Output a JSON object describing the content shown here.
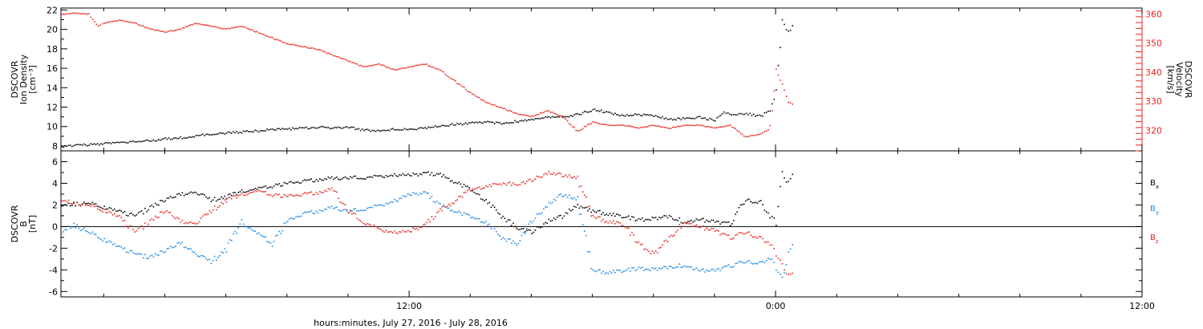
{
  "colors": {
    "black": "#000000",
    "red": "#e8251f",
    "blue": "#1e88e5",
    "axis": "#000000"
  },
  "chart_data": {
    "type": "scatter",
    "xlabel": "hours:minutes, July 27, 2016 - July 28, 2016",
    "x_unit": "hours from 00:00 July 27, 2016",
    "xlim": [
      0.6,
      36.0
    ],
    "x_ticks": [
      {
        "value": 12,
        "label": "12:00"
      },
      {
        "value": 24,
        "label": "0:00"
      },
      {
        "value": 36,
        "label": "12:00"
      }
    ],
    "top_panel": {
      "left_axis": {
        "label_lines": [
          "DSCOVR",
          "Ion Density",
          "[cm⁻³]"
        ],
        "ylim": [
          7.5,
          22.2
        ],
        "ticks": [
          8,
          10,
          12,
          14,
          16,
          18,
          20,
          22
        ],
        "color": "#000000"
      },
      "right_axis": {
        "label_lines": [
          "DSCOVR",
          "Velocity",
          "[km/s]"
        ],
        "ylim": [
          313,
          362
        ],
        "ticks": [
          320,
          330,
          340,
          350,
          360
        ],
        "color": "#e8251f"
      },
      "series": [
        {
          "color": "#000000",
          "axis": "left",
          "x": [
            0.6,
            1.0,
            1.5,
            2.0,
            2.5,
            3.0,
            3.5,
            4.0,
            4.5,
            5.0,
            5.5,
            6.0,
            6.5,
            7.0,
            7.5,
            8.0,
            8.5,
            9.0,
            9.5,
            10.0,
            10.5,
            11.0,
            11.5,
            12.0,
            12.5,
            13.0,
            13.5,
            14.0,
            14.5,
            15.0,
            15.5,
            16.0,
            16.5,
            17.0,
            17.5,
            18.0,
            18.5,
            19.0,
            19.5,
            20.0,
            20.5,
            21.0,
            21.5,
            22.0,
            22.3,
            22.6,
            22.9,
            23.2,
            23.5,
            23.8,
            24.0,
            24.2,
            24.4,
            24.6
          ],
          "y": [
            8.0,
            8.1,
            8.2,
            8.3,
            8.4,
            8.5,
            8.6,
            8.8,
            8.9,
            9.1,
            9.3,
            9.4,
            9.5,
            9.6,
            9.8,
            9.8,
            9.9,
            10.0,
            9.9,
            10.0,
            9.7,
            9.6,
            9.8,
            9.8,
            9.9,
            10.1,
            10.3,
            10.4,
            10.5,
            10.4,
            10.6,
            10.8,
            11.0,
            11.1,
            11.3,
            11.8,
            11.5,
            11.2,
            11.3,
            11.2,
            10.8,
            10.9,
            11.0,
            10.7,
            11.5,
            11.2,
            11.4,
            11.3,
            11.1,
            11.8,
            13.5,
            21.0,
            19.8,
            20.6
          ]
        },
        {
          "color": "#e8251f",
          "axis": "right",
          "x": [
            0.6,
            1.0,
            1.5,
            1.8,
            2.0,
            2.5,
            3.0,
            3.5,
            4.0,
            4.5,
            5.0,
            5.5,
            6.0,
            6.5,
            7.0,
            7.5,
            8.0,
            8.5,
            9.0,
            9.5,
            10.0,
            10.5,
            11.0,
            11.5,
            12.0,
            12.5,
            13.0,
            13.5,
            14.0,
            14.5,
            15.0,
            15.5,
            16.0,
            16.5,
            17.0,
            17.5,
            18.0,
            18.5,
            19.0,
            19.5,
            20.0,
            20.5,
            21.0,
            21.5,
            22.0,
            22.5,
            23.0,
            23.5,
            23.8,
            24.0,
            24.2,
            24.4,
            24.6
          ],
          "y": [
            360,
            360.5,
            360,
            356,
            357,
            358,
            357,
            355,
            354,
            355,
            357,
            356,
            355,
            356,
            354,
            352,
            350,
            349,
            348,
            346,
            344,
            342,
            343,
            341,
            342,
            343,
            341,
            337,
            333,
            330,
            328,
            326,
            325,
            327,
            325,
            320,
            323,
            322,
            322,
            321,
            322,
            321,
            322,
            322,
            321,
            322,
            318,
            319,
            321,
            341,
            336,
            330,
            329
          ]
        }
      ]
    },
    "bottom_panel": {
      "left_axis": {
        "label_lines": [
          "DSCOVR",
          "B",
          "[nT]"
        ],
        "ylim": [
          -6.5,
          7.0
        ],
        "ticks": [
          -6,
          -4,
          -2,
          0,
          2,
          4,
          6
        ],
        "color": "#000000"
      },
      "zero_line": true,
      "legend_placement": "right",
      "series": [
        {
          "name": "Bx",
          "color": "#000000",
          "x": [
            0.6,
            1.0,
            1.5,
            2.0,
            2.5,
            3.0,
            3.5,
            4.0,
            4.5,
            5.0,
            5.5,
            6.0,
            6.5,
            7.0,
            7.5,
            8.0,
            8.5,
            9.0,
            9.5,
            10.0,
            10.5,
            11.0,
            11.5,
            12.0,
            12.5,
            13.0,
            13.5,
            14.0,
            14.5,
            15.0,
            15.5,
            16.0,
            16.5,
            17.0,
            17.5,
            18.0,
            18.5,
            19.0,
            19.5,
            20.0,
            20.5,
            21.0,
            21.5,
            22.0,
            22.5,
            23.0,
            23.5,
            23.8,
            24.0,
            24.2,
            24.4,
            24.6
          ],
          "y": [
            2.0,
            2.1,
            2.2,
            1.8,
            1.5,
            1.0,
            1.8,
            2.5,
            3.0,
            3.2,
            2.5,
            2.8,
            3.3,
            3.6,
            3.8,
            4.0,
            4.2,
            4.4,
            4.5,
            4.6,
            4.6,
            4.7,
            4.8,
            4.8,
            5.0,
            4.8,
            4.2,
            3.5,
            2.5,
            1.0,
            0.0,
            -0.5,
            0.5,
            1.0,
            2.0,
            1.5,
            1.2,
            1.0,
            0.7,
            0.8,
            1.0,
            0.5,
            0.7,
            0.5,
            0.3,
            2.5,
            2.3,
            1.0,
            0.5,
            5.0,
            4.0,
            5.5
          ]
        },
        {
          "name": "By",
          "color": "#1e88e5",
          "x": [
            0.6,
            1.0,
            1.5,
            2.0,
            2.5,
            3.0,
            3.5,
            4.0,
            4.5,
            5.0,
            5.5,
            6.0,
            6.5,
            7.0,
            7.5,
            8.0,
            8.5,
            9.0,
            9.5,
            10.0,
            10.5,
            11.0,
            11.5,
            12.0,
            12.5,
            13.0,
            13.5,
            14.0,
            14.5,
            15.0,
            15.5,
            16.0,
            16.5,
            17.0,
            17.5,
            18.0,
            18.5,
            19.0,
            19.5,
            20.0,
            20.5,
            21.0,
            21.5,
            22.0,
            22.5,
            23.0,
            23.5,
            23.8,
            24.0,
            24.2,
            24.4,
            24.6
          ],
          "y": [
            -0.5,
            0.2,
            -0.5,
            -1.2,
            -1.8,
            -2.5,
            -2.8,
            -2.2,
            -1.5,
            -2.5,
            -3.2,
            -2.0,
            0.5,
            -0.5,
            -1.5,
            0.5,
            1.2,
            1.5,
            1.8,
            1.5,
            1.7,
            2.0,
            2.4,
            3.0,
            3.2,
            2.0,
            1.5,
            1.0,
            0.5,
            -1.0,
            -1.5,
            0.5,
            2.0,
            3.0,
            2.5,
            -4.0,
            -4.2,
            -4.0,
            -3.8,
            -3.9,
            -3.7,
            -3.5,
            -4.0,
            -4.0,
            -3.6,
            -3.2,
            -3.3,
            -2.8,
            -3.8,
            -4.8,
            -2.5,
            -1.0
          ]
        },
        {
          "name": "Bz",
          "color": "#e8251f",
          "x": [
            0.6,
            1.0,
            1.5,
            2.0,
            2.5,
            3.0,
            3.5,
            4.0,
            4.5,
            5.0,
            5.5,
            6.0,
            6.5,
            7.0,
            7.5,
            8.0,
            8.5,
            9.0,
            9.5,
            10.0,
            10.5,
            11.0,
            11.5,
            12.0,
            12.5,
            13.0,
            13.5,
            14.0,
            14.5,
            15.0,
            15.5,
            16.0,
            16.5,
            17.0,
            17.5,
            18.0,
            18.5,
            19.0,
            19.5,
            20.0,
            20.5,
            21.0,
            21.5,
            22.0,
            22.5,
            23.0,
            23.5,
            23.8,
            24.0,
            24.2,
            24.4,
            24.6
          ],
          "y": [
            2.5,
            2.2,
            2.0,
            1.5,
            1.0,
            -0.5,
            0.5,
            1.5,
            0.5,
            0.3,
            1.5,
            2.5,
            3.0,
            3.4,
            3.0,
            2.8,
            3.0,
            3.2,
            3.5,
            1.5,
            0.5,
            -0.2,
            -0.5,
            -0.4,
            0.2,
            1.5,
            2.5,
            3.5,
            3.8,
            4.0,
            4.0,
            4.3,
            5.0,
            4.8,
            4.5,
            1.0,
            0.5,
            0.3,
            -1.5,
            -2.5,
            -1.0,
            0.5,
            0.0,
            -0.3,
            -1.0,
            -0.5,
            -1.0,
            -1.5,
            -2.5,
            -3.5,
            -4.5,
            -4.0
          ]
        }
      ]
    }
  }
}
